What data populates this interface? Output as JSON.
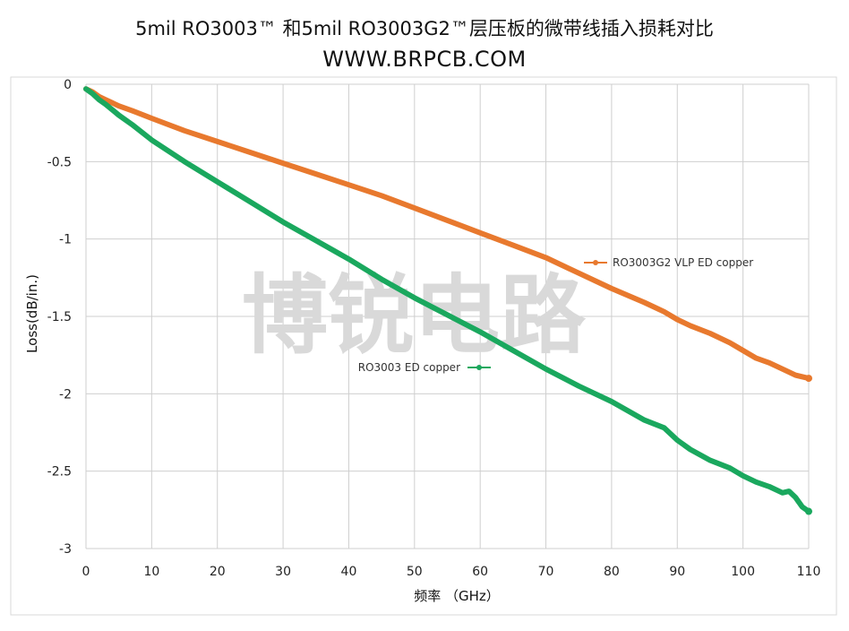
{
  "header": {
    "title": "5mil RO3003™ 和5mil RO3003G2™层压板的微带线插入损耗对比",
    "subtitle": "WWW.BRPCB.COM"
  },
  "watermark": "博锐电路",
  "chart_data": {
    "type": "line",
    "xlabel": "频率 （GHz）",
    "ylabel": "Loss(dB/in.)",
    "xlim": [
      0,
      110
    ],
    "ylim": [
      -3,
      0
    ],
    "xticks": [
      0,
      10,
      20,
      30,
      40,
      50,
      60,
      70,
      80,
      90,
      100,
      110
    ],
    "xtick_labels": [
      "0",
      "10",
      "20",
      "30",
      "40",
      "50",
      "60",
      "70",
      "80",
      "90",
      "100",
      "110"
    ],
    "yticks": [
      0,
      -0.5,
      -1,
      -1.5,
      -2,
      -2.5,
      -3
    ],
    "ytick_labels": [
      "0",
      "-0.5",
      "-1",
      "-1.5",
      "-2",
      "-2.5",
      "-3"
    ],
    "grid": true,
    "series": [
      {
        "name": "RO3003G2 VLP ED copper",
        "color": "#e8792e",
        "x": [
          0,
          1,
          2,
          3,
          5,
          7,
          10,
          15,
          20,
          25,
          30,
          35,
          40,
          45,
          50,
          55,
          60,
          65,
          70,
          75,
          80,
          85,
          88,
          90,
          92,
          95,
          98,
          100,
          102,
          104,
          106,
          108,
          110
        ],
        "y": [
          -0.03,
          -0.05,
          -0.08,
          -0.1,
          -0.14,
          -0.17,
          -0.22,
          -0.3,
          -0.37,
          -0.44,
          -0.51,
          -0.58,
          -0.65,
          -0.72,
          -0.8,
          -0.88,
          -0.96,
          -1.04,
          -1.12,
          -1.22,
          -1.32,
          -1.41,
          -1.47,
          -1.52,
          -1.56,
          -1.61,
          -1.67,
          -1.72,
          -1.77,
          -1.8,
          -1.84,
          -1.88,
          -1.9
        ]
      },
      {
        "name": "RO3003 ED copper",
        "color": "#1aa85e",
        "x": [
          0,
          1,
          2,
          3,
          5,
          7,
          10,
          15,
          20,
          25,
          30,
          35,
          40,
          45,
          50,
          55,
          60,
          65,
          70,
          75,
          80,
          85,
          88,
          90,
          92,
          95,
          98,
          100,
          102,
          104,
          106,
          107,
          108,
          109,
          110
        ],
        "y": [
          -0.03,
          -0.06,
          -0.1,
          -0.13,
          -0.2,
          -0.26,
          -0.36,
          -0.5,
          -0.63,
          -0.76,
          -0.89,
          -1.01,
          -1.13,
          -1.26,
          -1.38,
          -1.49,
          -1.6,
          -1.72,
          -1.84,
          -1.95,
          -2.05,
          -2.17,
          -2.22,
          -2.3,
          -2.36,
          -2.43,
          -2.48,
          -2.53,
          -2.57,
          -2.6,
          -2.64,
          -2.63,
          -2.67,
          -2.73,
          -2.76
        ]
      }
    ],
    "legend": [
      {
        "text": "RO3003G2 VLP ED copper",
        "position": "right, above series"
      },
      {
        "text": "RO3003 ED copper",
        "position": "center-right, beside series"
      }
    ]
  }
}
